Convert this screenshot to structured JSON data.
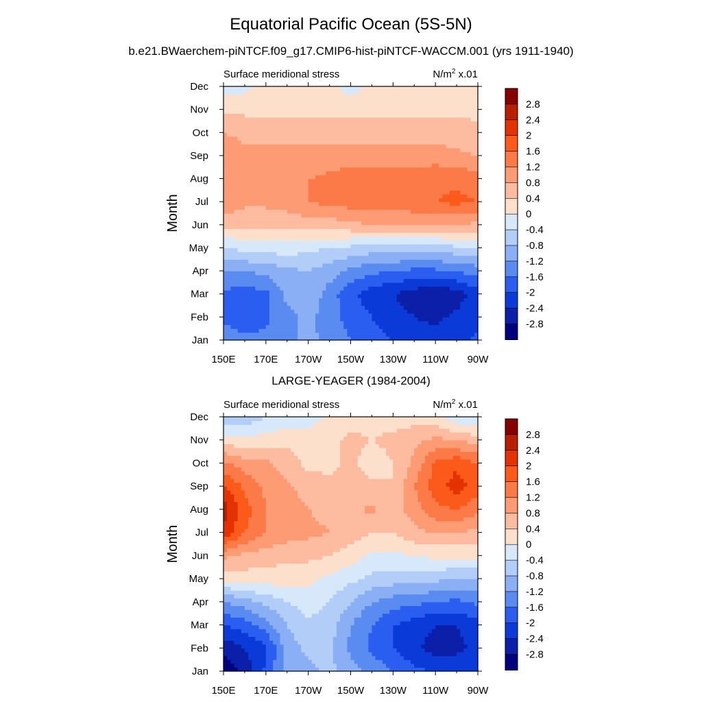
{
  "header": {
    "title": "Equatorial Pacific Ocean (5S-5N)",
    "subtitle": "b.e21.BWaerchem-piNTCF.f09_g17.CMIP6-hist-piNTCF-WACCM.001 (yrs 1911-1940)",
    "panel2_title": "LARGE-YEAGER (1984-2004)"
  },
  "colorbar": {
    "labels": [
      "2.8",
      "2.4",
      "2",
      "1.6",
      "1.2",
      "0.8",
      "0.4",
      "0",
      "-0.4",
      "-0.8",
      "-1.2",
      "-1.6",
      "-2",
      "-2.4",
      "-2.8"
    ],
    "colors": [
      "#870000",
      "#b71f00",
      "#e33300",
      "#fb5a1a",
      "#fb7a48",
      "#fc9b74",
      "#fdbca0",
      "#fde0cc",
      "#d8e8fb",
      "#b2cdf8",
      "#8aaff4",
      "#5a8bf0",
      "#2b5ef0",
      "#0b3ad8",
      "#0b1fa8",
      "#00007f"
    ]
  },
  "chart_data": [
    {
      "type": "heatmap",
      "title": "Surface meridional stress",
      "units_label": "N/m",
      "units_exp": "2",
      "units_scale": " x.01",
      "ylabel": "Month",
      "xlabel": "",
      "x": [
        "150E",
        "160E",
        "170E",
        "180",
        "170W",
        "160W",
        "150W",
        "140W",
        "130W",
        "120W",
        "110W",
        "100W",
        "90W"
      ],
      "x_tick_labels": [
        "150E",
        "170E",
        "170W",
        "150W",
        "130W",
        "110W",
        "90W"
      ],
      "y": [
        "Jan",
        "Feb",
        "Mar",
        "Apr",
        "May",
        "Jun",
        "Jul",
        "Aug",
        "Sep",
        "Oct",
        "Nov",
        "Dec"
      ],
      "levels": [
        -2.8,
        -2.4,
        -2.0,
        -1.6,
        -1.2,
        -0.8,
        -0.4,
        0,
        0.4,
        0.8,
        1.2,
        1.6,
        2.0,
        2.4,
        2.8
      ],
      "values": [
        [
          -1.4,
          -1.5,
          -1.5,
          -1.3,
          -1.1,
          -1.3,
          -1.6,
          -1.8,
          -2.0,
          -2.1,
          -2.2,
          -2.1,
          -1.9
        ],
        [
          -1.7,
          -1.8,
          -1.7,
          -1.3,
          -1.1,
          -1.4,
          -1.8,
          -2.0,
          -2.2,
          -2.4,
          -2.5,
          -2.3,
          -2.1
        ],
        [
          -1.7,
          -1.8,
          -1.7,
          -1.1,
          -0.9,
          -1.4,
          -1.9,
          -2.2,
          -2.4,
          -2.6,
          -2.8,
          -2.6,
          -2.2
        ],
        [
          -1.2,
          -1.2,
          -1.1,
          -0.9,
          -0.8,
          -1.0,
          -1.3,
          -1.5,
          -1.6,
          -1.7,
          -1.7,
          -1.6,
          -1.4
        ],
        [
          -0.4,
          -0.3,
          -0.2,
          -0.2,
          -0.3,
          -0.4,
          -0.5,
          -0.6,
          -0.6,
          -0.6,
          -0.6,
          -0.5,
          -0.5
        ],
        [
          0.5,
          0.5,
          0.5,
          0.5,
          0.6,
          0.6,
          0.7,
          0.8,
          0.8,
          0.8,
          0.8,
          0.8,
          0.7
        ],
        [
          1.1,
          0.9,
          0.9,
          1.0,
          1.2,
          1.3,
          1.4,
          1.4,
          1.4,
          1.5,
          1.6,
          1.7,
          1.6
        ],
        [
          1.2,
          0.9,
          0.9,
          1.0,
          1.2,
          1.3,
          1.4,
          1.4,
          1.4,
          1.4,
          1.5,
          1.5,
          1.4
        ],
        [
          1.1,
          0.9,
          0.9,
          0.9,
          0.9,
          1.0,
          1.0,
          1.0,
          1.0,
          1.0,
          1.0,
          0.9,
          0.8
        ],
        [
          0.8,
          0.7,
          0.7,
          0.7,
          0.7,
          0.6,
          0.6,
          0.6,
          0.6,
          0.6,
          0.6,
          0.6,
          0.5
        ],
        [
          0.3,
          0.3,
          0.3,
          0.3,
          0.3,
          0.3,
          0.3,
          0.3,
          0.3,
          0.3,
          0.3,
          0.3,
          0.3
        ],
        [
          -0.2,
          -0.1,
          0.1,
          0.1,
          0.2,
          0.2,
          -0.2,
          0.1,
          0.2,
          0.2,
          0.2,
          0.2,
          0.2
        ]
      ]
    },
    {
      "type": "heatmap",
      "title": "Surface meridional stress",
      "units_label": "N/m",
      "units_exp": "2",
      "units_scale": " x.01",
      "ylabel": "Month",
      "xlabel": "",
      "x": [
        "150E",
        "160E",
        "170E",
        "180",
        "170W",
        "160W",
        "150W",
        "140W",
        "130W",
        "120W",
        "110W",
        "100W",
        "90W"
      ],
      "x_tick_labels": [
        "150E",
        "170E",
        "170W",
        "150W",
        "130W",
        "110W",
        "90W"
      ],
      "y": [
        "Jan",
        "Feb",
        "Mar",
        "Apr",
        "May",
        "Jun",
        "Jul",
        "Aug",
        "Sep",
        "Oct",
        "Nov",
        "Dec"
      ],
      "levels": [
        -2.8,
        -2.4,
        -2.0,
        -1.6,
        -1.2,
        -0.8,
        -0.4,
        0,
        0.4,
        0.8,
        1.2,
        1.6,
        2.0,
        2.4,
        2.8
      ],
      "values": [
        [
          -3.0,
          -2.7,
          -1.9,
          -1.1,
          -0.9,
          -0.7,
          -1.0,
          -1.3,
          -1.6,
          -1.9,
          -2.0,
          -2.1,
          -2.0
        ],
        [
          -2.7,
          -2.4,
          -2.1,
          -1.0,
          -0.7,
          -0.7,
          -1.3,
          -1.7,
          -2.0,
          -2.3,
          -2.6,
          -2.5,
          -2.3
        ],
        [
          -2.0,
          -1.8,
          -1.4,
          -0.8,
          -0.5,
          -0.6,
          -1.2,
          -1.6,
          -2.0,
          -2.2,
          -2.4,
          -2.4,
          -2.2
        ],
        [
          -1.2,
          -1.0,
          -0.7,
          -0.4,
          -0.2,
          -0.4,
          -0.8,
          -1.2,
          -1.4,
          -1.5,
          -1.6,
          -1.7,
          -1.5
        ],
        [
          0.1,
          0.2,
          0.2,
          0.2,
          0.1,
          -0.1,
          -0.3,
          -0.5,
          -0.6,
          -0.6,
          -0.7,
          -0.8,
          -0.8
        ],
        [
          0.9,
          0.7,
          0.6,
          0.5,
          0.5,
          0.4,
          0.2,
          -0.1,
          -0.1,
          0.0,
          0.1,
          0.1,
          0.1
        ],
        [
          2.3,
          1.6,
          1.2,
          1.0,
          0.9,
          0.8,
          0.6,
          0.4,
          0.4,
          0.7,
          0.8,
          0.8,
          0.7
        ],
        [
          2.6,
          1.8,
          1.2,
          1.0,
          0.8,
          0.7,
          0.7,
          0.9,
          0.6,
          1.0,
          1.5,
          1.6,
          1.3
        ],
        [
          2.1,
          1.5,
          1.1,
          0.9,
          0.6,
          0.5,
          0.6,
          0.5,
          0.4,
          1.2,
          1.8,
          2.2,
          1.8
        ],
        [
          1.3,
          1.0,
          0.9,
          0.6,
          0.3,
          0.3,
          0.5,
          0.2,
          0.4,
          0.9,
          1.7,
          1.9,
          1.6
        ],
        [
          0.2,
          0.1,
          0.2,
          0.3,
          0.2,
          0.3,
          0.5,
          0.4,
          0.5,
          0.7,
          0.9,
          0.8,
          0.6
        ],
        [
          -0.6,
          -0.7,
          -0.4,
          -0.3,
          -0.2,
          0.1,
          0.2,
          0.3,
          0.2,
          0.2,
          0.1,
          -0.3,
          -0.4
        ]
      ]
    }
  ]
}
